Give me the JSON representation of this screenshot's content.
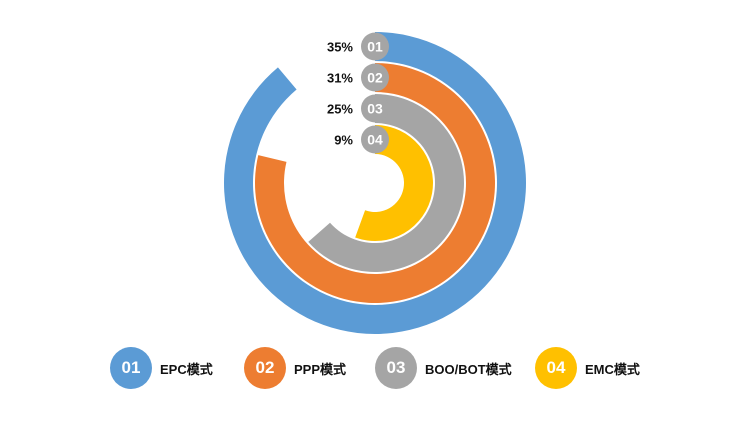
{
  "chart_data": {
    "type": "radial-bar",
    "series": [
      {
        "code": "01",
        "name": "EPC模式",
        "value": 35,
        "label": "35%",
        "color": "#5B9BD5"
      },
      {
        "code": "02",
        "name": "PPP模式",
        "value": 31,
        "label": "31%",
        "color": "#ED7D31"
      },
      {
        "code": "03",
        "name": "BOO/BOT模式",
        "value": 25,
        "label": "25%",
        "color": "#A5A5A5"
      },
      {
        "code": "04",
        "name": "EMC模式",
        "value": 9,
        "label": "9%",
        "color": "#FFC000"
      }
    ]
  },
  "legend": {
    "items": [
      {
        "code": "01",
        "label": "EPC模式"
      },
      {
        "code": "02",
        "label": "PPP模式"
      },
      {
        "code": "03",
        "label": "BOO/BOT模式"
      },
      {
        "code": "04",
        "label": "EMC模式"
      }
    ]
  },
  "colors": {
    "track_gap": "#ffffff",
    "text": "#111111"
  }
}
